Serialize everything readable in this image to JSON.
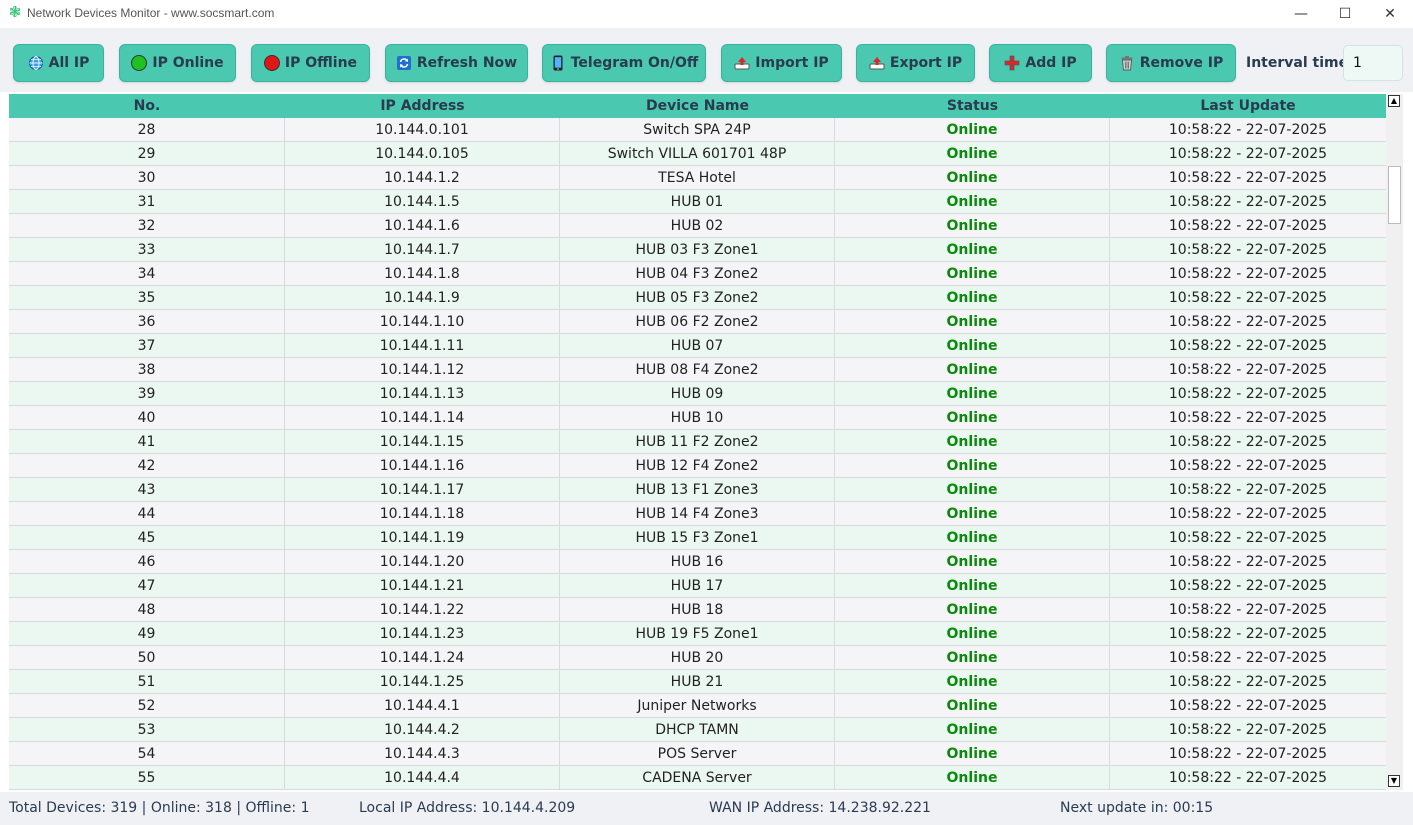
{
  "window": {
    "title": "Network Devices Monitor - www.socsmart.com",
    "minimize": "—",
    "maximize": "☐",
    "close": "✕"
  },
  "toolbar": {
    "buttons": [
      {
        "label": "All IP",
        "icon": "globe-icon"
      },
      {
        "label": "IP Online",
        "icon": "green-dot-icon"
      },
      {
        "label": "IP Offline",
        "icon": "red-dot-icon"
      },
      {
        "label": "Refresh Now",
        "icon": "refresh-icon"
      },
      {
        "label": "Telegram On/Off",
        "icon": "phone-icon"
      },
      {
        "label": "Import IP",
        "icon": "import-icon"
      },
      {
        "label": "Export IP",
        "icon": "export-icon"
      },
      {
        "label": "Add IP",
        "icon": "add-icon"
      },
      {
        "label": "Remove IP",
        "icon": "trash-icon"
      }
    ],
    "interval_label": "Interval time:",
    "interval_value": "1"
  },
  "colors": {
    "accent": "#4ac9b0",
    "online": "#0a8a0a"
  },
  "table": {
    "columns": [
      "No.",
      "IP Address",
      "Device Name",
      "Status",
      "Last Update"
    ],
    "rows": [
      [
        "28",
        "10.144.0.101",
        "Switch SPA 24P",
        "Online",
        "10:58:22 - 22-07-2025"
      ],
      [
        "29",
        "10.144.0.105",
        "Switch VILLA 601701 48P",
        "Online",
        "10:58:22 - 22-07-2025"
      ],
      [
        "30",
        "10.144.1.2",
        "TESA Hotel",
        "Online",
        "10:58:22 - 22-07-2025"
      ],
      [
        "31",
        "10.144.1.5",
        "HUB 01",
        "Online",
        "10:58:22 - 22-07-2025"
      ],
      [
        "32",
        "10.144.1.6",
        "HUB 02",
        "Online",
        "10:58:22 - 22-07-2025"
      ],
      [
        "33",
        "10.144.1.7",
        "HUB 03 F3 Zone1",
        "Online",
        "10:58:22 - 22-07-2025"
      ],
      [
        "34",
        "10.144.1.8",
        "HUB 04 F3 Zone2",
        "Online",
        "10:58:22 - 22-07-2025"
      ],
      [
        "35",
        "10.144.1.9",
        "HUB 05 F3 Zone2",
        "Online",
        "10:58:22 - 22-07-2025"
      ],
      [
        "36",
        "10.144.1.10",
        "HUB 06 F2 Zone2",
        "Online",
        "10:58:22 - 22-07-2025"
      ],
      [
        "37",
        "10.144.1.11",
        "HUB 07",
        "Online",
        "10:58:22 - 22-07-2025"
      ],
      [
        "38",
        "10.144.1.12",
        "HUB 08 F4 Zone2",
        "Online",
        "10:58:22 - 22-07-2025"
      ],
      [
        "39",
        "10.144.1.13",
        "HUB 09",
        "Online",
        "10:58:22 - 22-07-2025"
      ],
      [
        "40",
        "10.144.1.14",
        "HUB 10",
        "Online",
        "10:58:22 - 22-07-2025"
      ],
      [
        "41",
        "10.144.1.15",
        "HUB 11 F2 Zone2",
        "Online",
        "10:58:22 - 22-07-2025"
      ],
      [
        "42",
        "10.144.1.16",
        "HUB 12 F4 Zone2",
        "Online",
        "10:58:22 - 22-07-2025"
      ],
      [
        "43",
        "10.144.1.17",
        "HUB 13 F1 Zone3",
        "Online",
        "10:58:22 - 22-07-2025"
      ],
      [
        "44",
        "10.144.1.18",
        "HUB 14 F4 Zone3",
        "Online",
        "10:58:22 - 22-07-2025"
      ],
      [
        "45",
        "10.144.1.19",
        "HUB 15 F3 Zone1",
        "Online",
        "10:58:22 - 22-07-2025"
      ],
      [
        "46",
        "10.144.1.20",
        "HUB 16",
        "Online",
        "10:58:22 - 22-07-2025"
      ],
      [
        "47",
        "10.144.1.21",
        "HUB 17",
        "Online",
        "10:58:22 - 22-07-2025"
      ],
      [
        "48",
        "10.144.1.22",
        "HUB 18",
        "Online",
        "10:58:22 - 22-07-2025"
      ],
      [
        "49",
        "10.144.1.23",
        "HUB 19 F5 Zone1",
        "Online",
        "10:58:22 - 22-07-2025"
      ],
      [
        "50",
        "10.144.1.24",
        "HUB 20",
        "Online",
        "10:58:22 - 22-07-2025"
      ],
      [
        "51",
        "10.144.1.25",
        "HUB 21",
        "Online",
        "10:58:22 - 22-07-2025"
      ],
      [
        "52",
        "10.144.4.1",
        "Juniper Networks",
        "Online",
        "10:58:22 - 22-07-2025"
      ],
      [
        "53",
        "10.144.4.2",
        "DHCP TAMN",
        "Online",
        "10:58:22 - 22-07-2025"
      ],
      [
        "54",
        "10.144.4.3",
        "POS Server",
        "Online",
        "10:58:22 - 22-07-2025"
      ],
      [
        "55",
        "10.144.4.4",
        "CADENA Server",
        "Online",
        "10:58:22 - 22-07-2025"
      ]
    ]
  },
  "status_bar": {
    "devices": "Total Devices: 319 | Online: 318 | Offline: 1",
    "local_ip": "Local IP Address: 10.144.4.209",
    "wan_ip": "WAN IP Address: 14.238.92.221",
    "next_update": "Next update in: 00:15"
  }
}
